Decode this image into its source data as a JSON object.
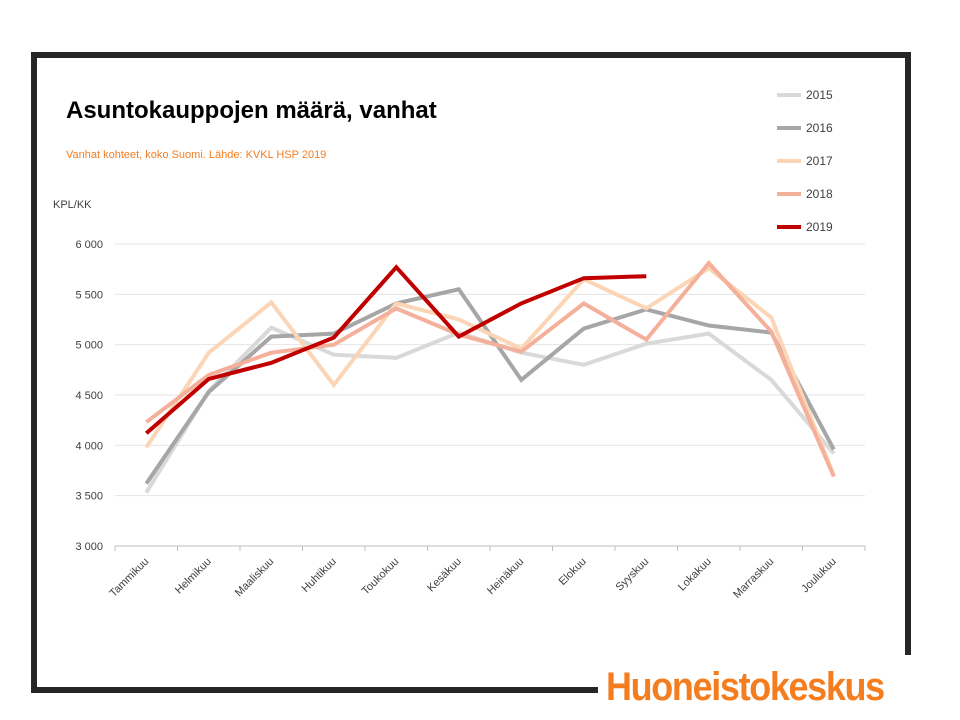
{
  "logo": {
    "text": "Huoneistokeskus",
    "color": "#f47d20"
  },
  "chart_data": {
    "type": "line",
    "title": "Asuntokauppojen määrä, vanhat",
    "subtitle": "Vanhat kohteet, koko Suomi. Lähde: KVKL HSP 2019",
    "ylabel": "KPL/KK",
    "xlabel": "",
    "ylim": [
      3000,
      6000
    ],
    "yticks": [
      3000,
      3500,
      4000,
      4500,
      5000,
      5500,
      6000
    ],
    "ytick_labels": [
      "3 000",
      "3 500",
      "4 000",
      "4 500",
      "5 000",
      "5 500",
      "6 000"
    ],
    "grid": true,
    "legend": "top-right",
    "categories": [
      "Tammikuu",
      "Helmikuu",
      "Maaliskuu",
      "Huhtikuu",
      "Toukokuu",
      "Kesäkuu",
      "Heinäkuu",
      "Elokuu",
      "Syyskuu",
      "Lokakuu",
      "Marraskuu",
      "Joulukuu"
    ],
    "series": [
      {
        "name": "2015",
        "color": "#d9d9d9",
        "values": [
          3530,
          4540,
          5170,
          4900,
          4870,
          5120,
          4920,
          4800,
          5010,
          5110,
          4650,
          3920
        ]
      },
      {
        "name": "2016",
        "color": "#a6a6a6",
        "values": [
          3620,
          4530,
          5080,
          5110,
          5410,
          5550,
          4650,
          5160,
          5350,
          5190,
          5120,
          3960
        ]
      },
      {
        "name": "2017",
        "color": "#fbd5b5",
        "values": [
          3980,
          4920,
          5420,
          4600,
          5410,
          5250,
          4960,
          5650,
          5360,
          5760,
          5270,
          3700
        ]
      },
      {
        "name": "2018",
        "color": "#f4b09a",
        "values": [
          4230,
          4700,
          4920,
          5000,
          5360,
          5100,
          4930,
          5410,
          5050,
          5810,
          5130,
          3690
        ]
      },
      {
        "name": "2019",
        "color": "#c00000",
        "values": [
          4120,
          4660,
          4820,
          5070,
          5770,
          5080,
          5410,
          5660,
          5680,
          null,
          null,
          null
        ]
      }
    ]
  }
}
